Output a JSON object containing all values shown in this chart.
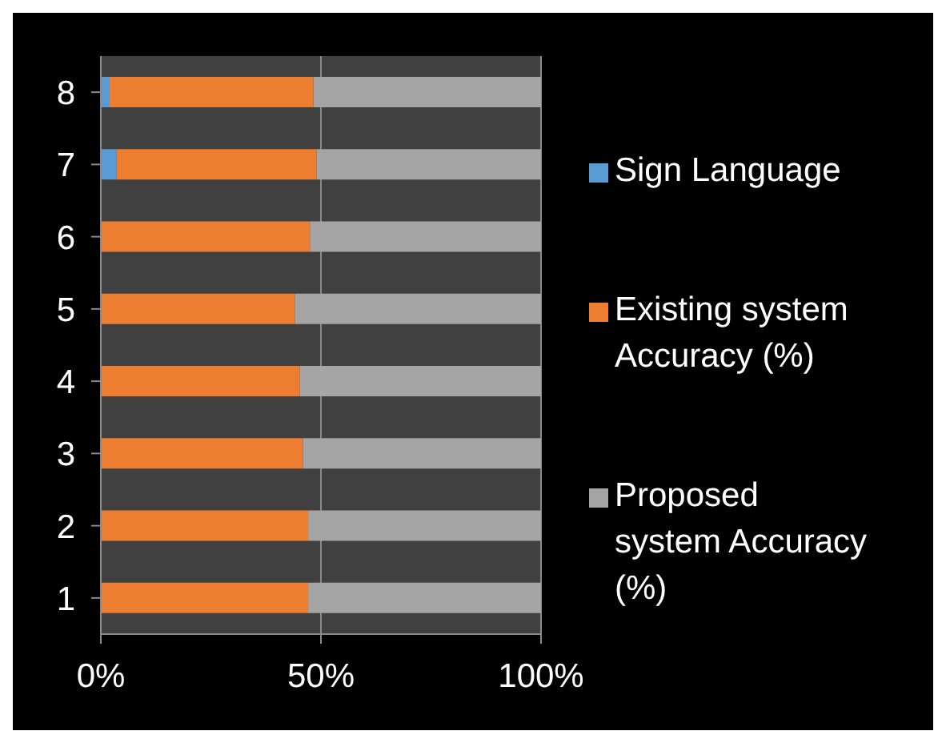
{
  "chart_data": {
    "type": "bar",
    "orientation": "horizontal",
    "stacked": true,
    "categories": [
      "8",
      "7",
      "6",
      "5",
      "4",
      "3",
      "2",
      "1"
    ],
    "series": [
      {
        "name": "Sign Language",
        "color": "#5b9bd5",
        "values": [
          2.0,
          3.6,
          0,
          0,
          0,
          0,
          0,
          0
        ]
      },
      {
        "name": "Existing system Accuracy (%)",
        "color": "#ed7d31",
        "values": [
          46.3,
          45.4,
          47.5,
          44.1,
          45.2,
          45.9,
          47.1,
          47.1
        ]
      },
      {
        "name": "Proposed system Accuracy (%)",
        "color": "#a5a5a5",
        "values": [
          51.7,
          51.0,
          52.5,
          55.9,
          54.8,
          54.1,
          52.9,
          52.9
        ]
      }
    ],
    "xlim": [
      0,
      100
    ],
    "xticks": [
      {
        "value": 0,
        "label": "0%"
      },
      {
        "value": 50,
        "label": "50%"
      },
      {
        "value": 100,
        "label": "100%"
      }
    ],
    "grid": "x",
    "legend": "right"
  }
}
